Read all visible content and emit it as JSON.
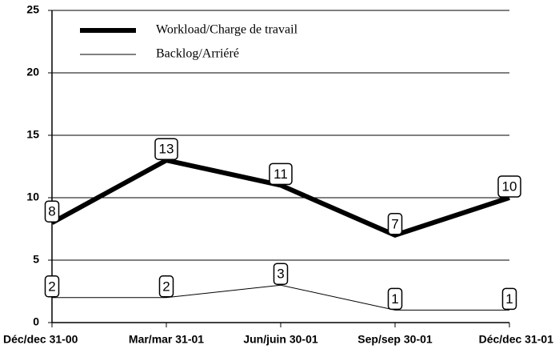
{
  "chart_data": {
    "type": "line",
    "categories": [
      "Déc/dec 31-00",
      "Mar/mar 31-01",
      "Jun/juin 30-01",
      "Sep/sep 30-01",
      "Déc/dec 31-01"
    ],
    "series": [
      {
        "name": "Workload/Charge de travail",
        "color": "#000000",
        "width": 6,
        "values": [
          8,
          13,
          11,
          7,
          10
        ]
      },
      {
        "name": "Backlog/Arriéré",
        "color": "#000000",
        "width": 1,
        "values": [
          2,
          2,
          3,
          1,
          1
        ]
      }
    ],
    "ylim": [
      0,
      25
    ],
    "yticks": [
      0,
      5,
      10,
      15,
      20,
      25
    ],
    "grid": true,
    "legend": "top-left",
    "data_labels": true
  }
}
